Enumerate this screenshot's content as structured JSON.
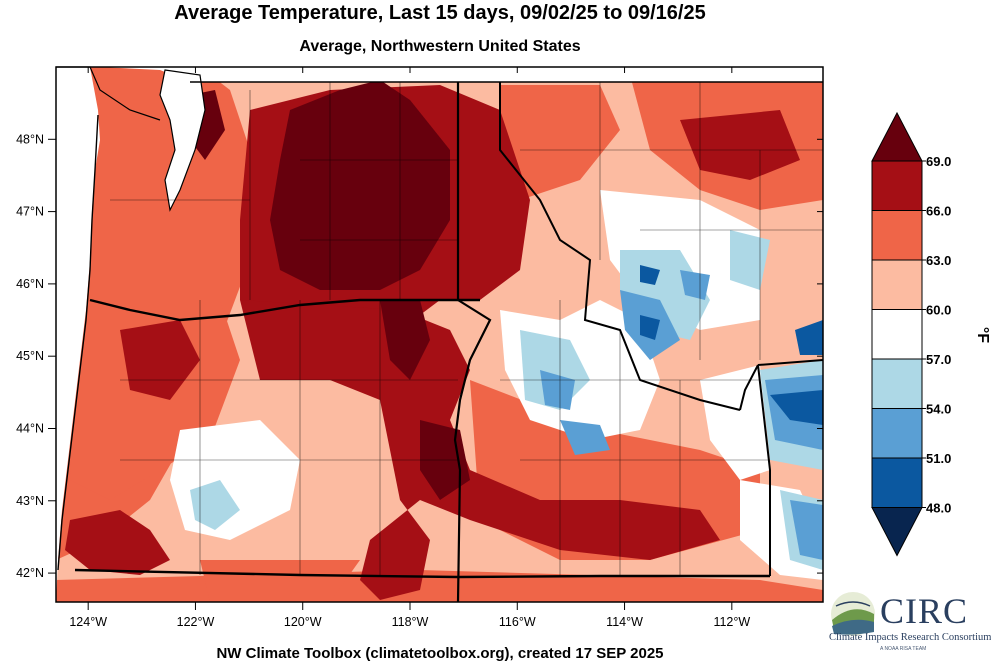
{
  "title": "Average Temperature, Last 15 days, 09/02/25 to 09/16/25",
  "subtitle": "Average, Northwestern United States",
  "credit": "NW Climate Toolbox (climatetoolbox.org), created 17 SEP 2025",
  "map": {
    "lon_range": [
      -124.6,
      -110.3
    ],
    "lat_range": [
      41.6,
      49.0
    ],
    "x_ticks": [
      {
        "lon": -124,
        "label": "124°W"
      },
      {
        "lon": -122,
        "label": "122°W"
      },
      {
        "lon": -120,
        "label": "120°W"
      },
      {
        "lon": -118,
        "label": "118°W"
      },
      {
        "lon": -116,
        "label": "116°W"
      },
      {
        "lon": -114,
        "label": "114°W"
      },
      {
        "lon": -112,
        "label": "112°W"
      }
    ],
    "y_ticks": [
      {
        "lat": 48,
        "label": "48°N"
      },
      {
        "lat": 47,
        "label": "47°N"
      },
      {
        "lat": 46,
        "label": "46°N"
      },
      {
        "lat": 45,
        "label": "45°N"
      },
      {
        "lat": 44,
        "label": "44°N"
      },
      {
        "lat": 43,
        "label": "43°N"
      },
      {
        "lat": 42,
        "label": "42°N"
      }
    ]
  },
  "colorbar": {
    "units": "°F",
    "labels": [
      "69.0",
      "66.0",
      "63.0",
      "60.0",
      "57.0",
      "54.0",
      "51.0",
      "48.0"
    ],
    "colors": [
      "#67000d",
      "#a50f15",
      "#ef6548",
      "#fcbba1",
      "#ffffff",
      "#add8e6",
      "#5a9fd4",
      "#0b58a0",
      "#08254f"
    ],
    "bins": [
      {
        "range": ">69",
        "color": "#67000d"
      },
      {
        "range": "66-69",
        "color": "#a50f15"
      },
      {
        "range": "63-66",
        "color": "#ef6548"
      },
      {
        "range": "60-63",
        "color": "#fcbba1"
      },
      {
        "range": "57-60",
        "color": "#ffffff"
      },
      {
        "range": "54-57",
        "color": "#add8e6"
      },
      {
        "range": "51-54",
        "color": "#5a9fd4"
      },
      {
        "range": "48-51",
        "color": "#0b58a0"
      },
      {
        "range": "<48",
        "color": "#08254f"
      }
    ]
  },
  "logo": {
    "name": "CIRC",
    "full_name": "Climate Impacts Research Consortium",
    "tagline": "A NOAA RISA TEAM"
  }
}
